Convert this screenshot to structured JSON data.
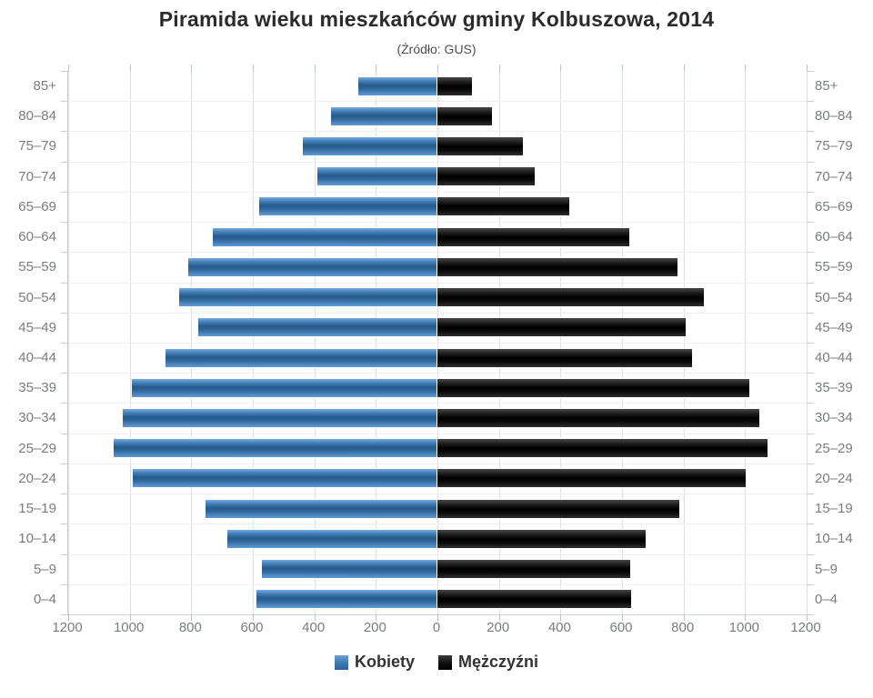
{
  "title": "Piramida wieku mieszkańców gminy Kolbuszowa, 2014",
  "subtitle": "(Źródło: GUS)",
  "chart_data": {
    "type": "bar",
    "variant": "population-pyramid",
    "orientation": "horizontal",
    "title": "Piramida wieku mieszkańców gminy Kolbuszowa, 2014",
    "subtitle": "(Źródło: GUS)",
    "categories": [
      "85+",
      "80–84",
      "75–79",
      "70–74",
      "65–69",
      "60–64",
      "55–59",
      "50–54",
      "45–49",
      "40–44",
      "35–39",
      "30–34",
      "25–29",
      "20–24",
      "15–19",
      "10–14",
      "5–9",
      "0–4"
    ],
    "series": [
      {
        "name": "Kobiety",
        "side": "left",
        "color": "#4783bd",
        "values": [
          257,
          345,
          438,
          390,
          578,
          731,
          809,
          838,
          778,
          885,
          994,
          1024,
          1053,
          990,
          755,
          683,
          571,
          589
        ]
      },
      {
        "name": "Mężczyźni",
        "side": "right",
        "color": "#141414",
        "values": [
          111,
          177,
          278,
          317,
          428,
          623,
          779,
          867,
          806,
          828,
          1015,
          1047,
          1074,
          1003,
          785,
          677,
          628,
          631
        ]
      }
    ],
    "x_axis": {
      "tick_labels": [
        "1200",
        "1000",
        "800",
        "600",
        "400",
        "200",
        "0",
        "200",
        "400",
        "600",
        "800",
        "1000",
        "1200"
      ],
      "max_each_side": 1200,
      "tick_step": 200,
      "grid": true
    },
    "legend_position": "bottom",
    "colors": {
      "female_bar": "#4783bd",
      "male_bar": "#141414",
      "grid_line": "#dde2e7",
      "axis_line": "#c6ccd2",
      "axis_text": "#797c7f",
      "title_text": "#2b2b2b"
    }
  }
}
